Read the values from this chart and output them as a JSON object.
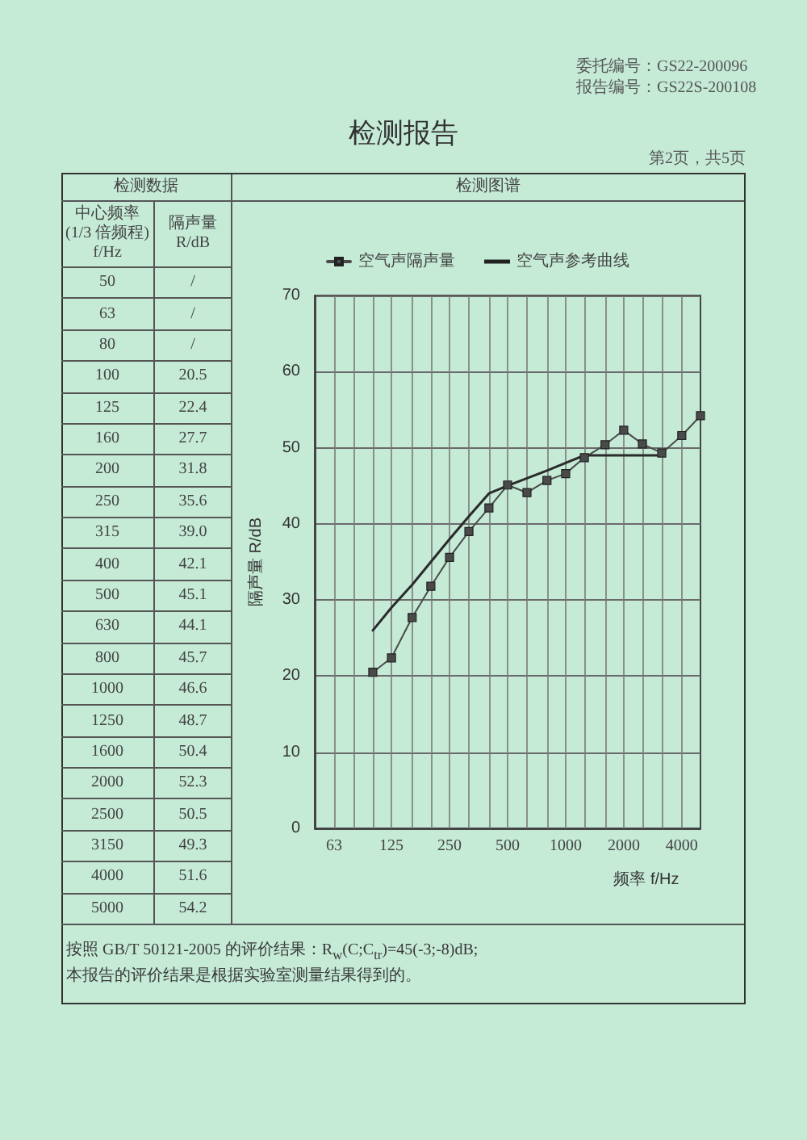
{
  "chart_data": [
    {
      "type": "other",
      "title": "检测报告",
      "annotations": [
        "委托编号：GS22-200096",
        "报告编号：GS22S-200108",
        "第2页，共5页",
        "按照 GB/T 50121-2005 的评价结果：R$_{w}$(C;C$_{tr}$)=45(-3;-8)dB;",
        "本报告的评价结果是根据实验室测量结果得到的。"
      ]
    },
    {
      "type": "other",
      "title": "检测数据",
      "xlabel": "中心频率 (1/3 倍频程) f/Hz",
      "ylabel": "隔声量 R/dB",
      "categories": [
        "50",
        "63",
        "80",
        "100",
        "125",
        "160",
        "200",
        "250",
        "315",
        "400",
        "500",
        "630",
        "800",
        "1000",
        "1250",
        "1600",
        "2000",
        "2500",
        "3150",
        "4000",
        "5000"
      ],
      "value_labels": [
        "/",
        "/",
        "/",
        "20.5",
        "22.4",
        "27.7",
        "31.8",
        "35.6",
        "39.0",
        "42.1",
        "45.1",
        "44.1",
        "45.7",
        "46.6",
        "48.7",
        "50.4",
        "52.3",
        "50.5",
        "49.3",
        "51.6",
        "54.2"
      ]
    },
    {
      "type": "line",
      "title": "检测图谱",
      "xlabel": "频率 f/Hz",
      "ylabel": "隔声量 R/dB",
      "series": [
        {
          "name": "空气声隔声量",
          "color": "#4a4a4a",
          "marker": "square",
          "x": [
            100,
            125,
            160,
            200,
            250,
            315,
            400,
            500,
            630,
            800,
            1000,
            1250,
            1600,
            2000,
            2500,
            3150,
            4000,
            5000
          ],
          "values": [
            20.5,
            22.4,
            27.7,
            31.8,
            35.6,
            39.0,
            42.1,
            45.1,
            44.1,
            45.7,
            46.6,
            48.7,
            50.4,
            52.3,
            50.5,
            49.3,
            51.6,
            54.2
          ]
        },
        {
          "name": "空气声参考曲线",
          "color": "#2b2b2b",
          "marker": "none",
          "x": [
            100,
            125,
            160,
            200,
            250,
            315,
            400,
            500,
            630,
            800,
            1000,
            1250,
            1600,
            2000,
            2500,
            3150
          ],
          "values": [
            26,
            29,
            32,
            35,
            38,
            41,
            44,
            45,
            46,
            47,
            48,
            49,
            49,
            49,
            49,
            49
          ]
        }
      ],
      "log": "x",
      "xlim": [
        50,
        5000
      ],
      "xticks": [
        63,
        {
          "value": 80,
          "label": null
        },
        {
          "value": 100,
          "label": null
        },
        125,
        {
          "value": 160,
          "label": null
        },
        {
          "value": 200,
          "label": null
        },
        250,
        {
          "value": 315,
          "label": null
        },
        {
          "value": 400,
          "label": null
        },
        500,
        {
          "value": 630,
          "label": null
        },
        {
          "value": 800,
          "label": null
        },
        1000,
        {
          "value": 1250,
          "label": null
        },
        {
          "value": 1600,
          "label": null
        },
        2000,
        {
          "value": 2500,
          "label": null
        },
        {
          "value": 3150,
          "label": null
        },
        4000
      ],
      "ylim": [
        0,
        70
      ],
      "yticks": [
        0,
        10,
        20,
        30,
        40,
        50,
        60,
        70
      ],
      "grid": true,
      "legend": "top left",
      "line_style": "solid"
    }
  ]
}
